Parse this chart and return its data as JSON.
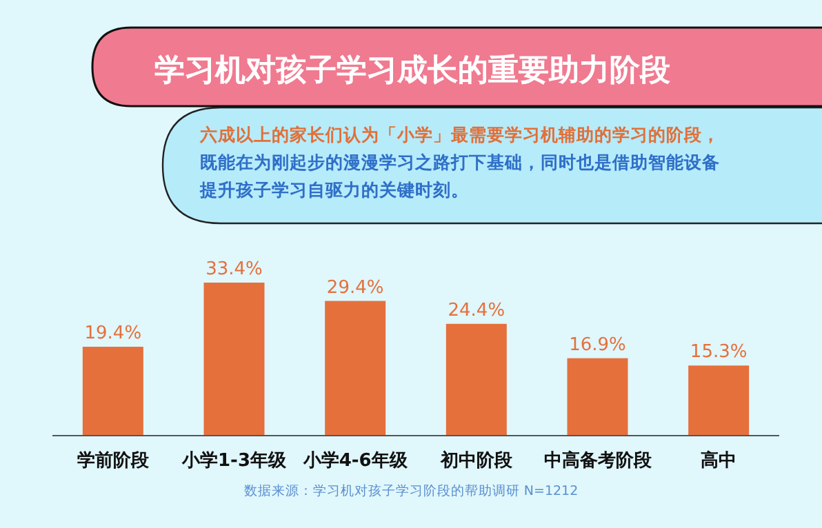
{
  "chart_data": {
    "type": "bar",
    "title": "学习机对孩子学习成长的重要助力阶段",
    "subtitle": "六成以上的家长们认为「小学」最需要学习机辅助的学习的阶段，既能在为刚起步的漫漫学习之路打下基础，同时也是借助智能设备提升孩子学习自驱力的关键时刻。",
    "categories": [
      "学前阶段",
      "小学1-3年级",
      "小学4-6年级",
      "初中阶段",
      "中高备考阶段",
      "高中"
    ],
    "values": [
      19.4,
      33.4,
      29.4,
      24.4,
      16.9,
      15.3
    ],
    "color": "#e5703c",
    "value_labels": [
      "19.4%",
      "33.4%",
      "29.4%",
      "24.4%",
      "16.9%",
      "15.3%"
    ],
    "annotations": [
      "数据来源：学习机对孩子学习阶段的帮助调研  N=1212"
    ]
  }
}
